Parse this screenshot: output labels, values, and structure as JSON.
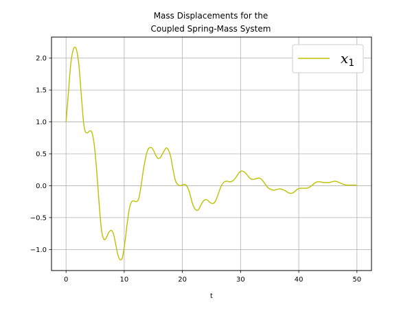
{
  "chart_data": {
    "type": "line",
    "title": "Mass Displacements for the\nCoupled Spring-Mass System",
    "xlabel": "t",
    "ylabel": "",
    "xlim": [
      -2.5,
      52.5
    ],
    "ylim": [
      -1.33,
      2.33
    ],
    "xticks": [
      0,
      10,
      20,
      30,
      40,
      50
    ],
    "yticks": [
      -1.0,
      -0.5,
      0.0,
      0.5,
      1.0,
      1.5,
      2.0
    ],
    "ytick_labels": [
      "−1.0",
      "−0.5",
      "0.0",
      "0.5",
      "1.0",
      "1.5",
      "2.0"
    ],
    "grid": true,
    "legend_position": "top-right",
    "series": [
      {
        "name": "x1",
        "legend_base": "x",
        "legend_sub": "1",
        "color": "#bfbf00",
        "points": [
          [
            0.0,
            1.0
          ],
          [
            0.4,
            1.45
          ],
          [
            0.8,
            1.9
          ],
          [
            1.2,
            2.12
          ],
          [
            1.5,
            2.17
          ],
          [
            1.8,
            2.13
          ],
          [
            2.2,
            1.9
          ],
          [
            2.6,
            1.45
          ],
          [
            3.0,
            1.0
          ],
          [
            3.3,
            0.85
          ],
          [
            3.7,
            0.83
          ],
          [
            4.1,
            0.86
          ],
          [
            4.5,
            0.82
          ],
          [
            4.9,
            0.6
          ],
          [
            5.3,
            0.2
          ],
          [
            5.7,
            -0.3
          ],
          [
            6.1,
            -0.7
          ],
          [
            6.5,
            -0.84
          ],
          [
            6.9,
            -0.82
          ],
          [
            7.3,
            -0.74
          ],
          [
            7.7,
            -0.7
          ],
          [
            8.1,
            -0.74
          ],
          [
            8.5,
            -0.9
          ],
          [
            8.9,
            -1.08
          ],
          [
            9.3,
            -1.16
          ],
          [
            9.7,
            -1.12
          ],
          [
            10.1,
            -0.9
          ],
          [
            10.5,
            -0.6
          ],
          [
            10.9,
            -0.35
          ],
          [
            11.3,
            -0.25
          ],
          [
            11.7,
            -0.24
          ],
          [
            12.1,
            -0.25
          ],
          [
            12.5,
            -0.2
          ],
          [
            12.9,
            0.0
          ],
          [
            13.3,
            0.25
          ],
          [
            13.7,
            0.45
          ],
          [
            14.1,
            0.57
          ],
          [
            14.6,
            0.6
          ],
          [
            15.0,
            0.56
          ],
          [
            15.4,
            0.48
          ],
          [
            15.8,
            0.43
          ],
          [
            16.2,
            0.44
          ],
          [
            16.7,
            0.52
          ],
          [
            17.2,
            0.59
          ],
          [
            17.6,
            0.56
          ],
          [
            18.0,
            0.45
          ],
          [
            18.4,
            0.25
          ],
          [
            18.8,
            0.08
          ],
          [
            19.2,
            0.02
          ],
          [
            19.7,
            0.0
          ],
          [
            20.2,
            0.02
          ],
          [
            20.7,
            0.0
          ],
          [
            21.2,
            -0.1
          ],
          [
            21.7,
            -0.27
          ],
          [
            22.2,
            -0.37
          ],
          [
            22.7,
            -0.38
          ],
          [
            23.2,
            -0.3
          ],
          [
            23.7,
            -0.23
          ],
          [
            24.2,
            -0.22
          ],
          [
            24.7,
            -0.26
          ],
          [
            25.2,
            -0.28
          ],
          [
            25.7,
            -0.24
          ],
          [
            26.2,
            -0.12
          ],
          [
            26.7,
            0.0
          ],
          [
            27.2,
            0.06
          ],
          [
            27.7,
            0.07
          ],
          [
            28.2,
            0.06
          ],
          [
            28.7,
            0.08
          ],
          [
            29.2,
            0.13
          ],
          [
            29.7,
            0.2
          ],
          [
            30.2,
            0.23
          ],
          [
            30.7,
            0.21
          ],
          [
            31.2,
            0.16
          ],
          [
            31.7,
            0.11
          ],
          [
            32.2,
            0.1
          ],
          [
            32.7,
            0.11
          ],
          [
            33.2,
            0.12
          ],
          [
            33.7,
            0.09
          ],
          [
            34.2,
            0.03
          ],
          [
            34.7,
            -0.03
          ],
          [
            35.2,
            -0.06
          ],
          [
            35.7,
            -0.07
          ],
          [
            36.2,
            -0.06
          ],
          [
            36.7,
            -0.05
          ],
          [
            37.2,
            -0.06
          ],
          [
            37.7,
            -0.08
          ],
          [
            38.2,
            -0.11
          ],
          [
            38.7,
            -0.12
          ],
          [
            39.2,
            -0.1
          ],
          [
            39.7,
            -0.06
          ],
          [
            40.2,
            -0.04
          ],
          [
            40.7,
            -0.04
          ],
          [
            41.2,
            -0.04
          ],
          [
            41.7,
            -0.03
          ],
          [
            42.2,
            0.0
          ],
          [
            42.7,
            0.04
          ],
          [
            43.2,
            0.06
          ],
          [
            43.7,
            0.06
          ],
          [
            44.2,
            0.05
          ],
          [
            44.7,
            0.05
          ],
          [
            45.2,
            0.05
          ],
          [
            45.7,
            0.06
          ],
          [
            46.2,
            0.07
          ],
          [
            46.7,
            0.06
          ],
          [
            47.2,
            0.04
          ],
          [
            47.7,
            0.02
          ],
          [
            48.2,
            0.01
          ],
          [
            48.7,
            0.01
          ],
          [
            49.2,
            0.01
          ],
          [
            49.7,
            0.01
          ],
          [
            50.0,
            0.0
          ]
        ]
      }
    ]
  }
}
